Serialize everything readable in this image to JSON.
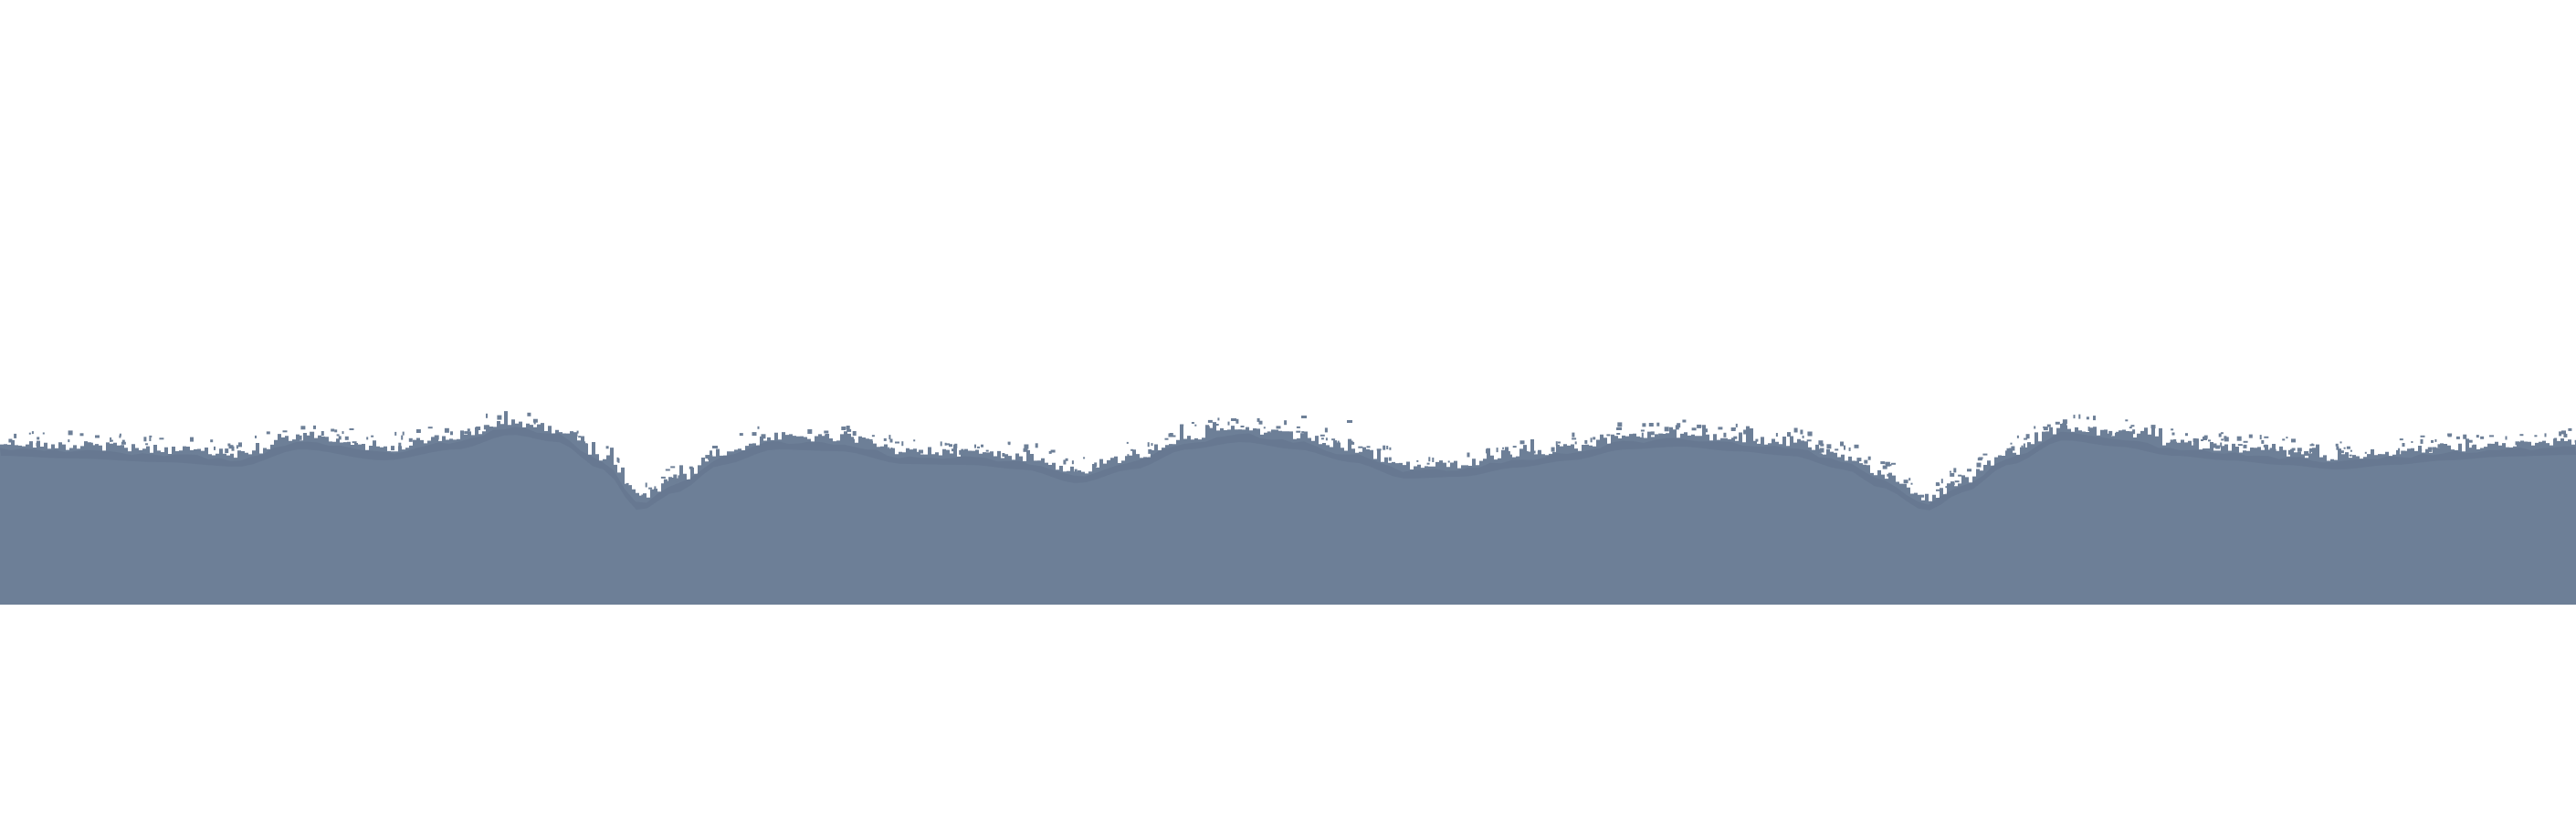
{
  "graphic": {
    "name": "torn-edge-divider",
    "colors": {
      "background": "#ffffff",
      "band": "#6d7f97",
      "band_shadow": "#5b6d86",
      "speckle": "#6d7f97"
    }
  }
}
